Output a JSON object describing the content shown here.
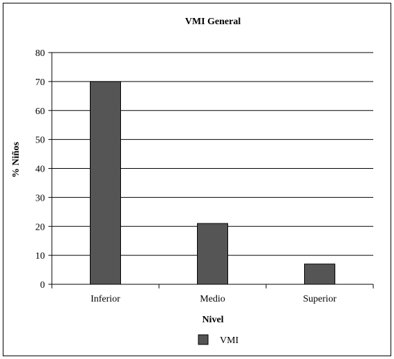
{
  "chart_data": {
    "type": "bar",
    "title": "VMI General",
    "xlabel": "Nivel",
    "ylabel": "% Niños",
    "categories": [
      "Inferior",
      "Medio",
      "Superior"
    ],
    "series": [
      {
        "name": "VMI",
        "values": [
          70,
          21,
          7
        ],
        "color": "#555555"
      }
    ],
    "ylim": [
      0,
      80
    ],
    "yticks": [
      "0",
      "10",
      "20",
      "30",
      "40",
      "50",
      "60",
      "70",
      "80"
    ],
    "grid": true,
    "legend_position": "bottom-center"
  }
}
